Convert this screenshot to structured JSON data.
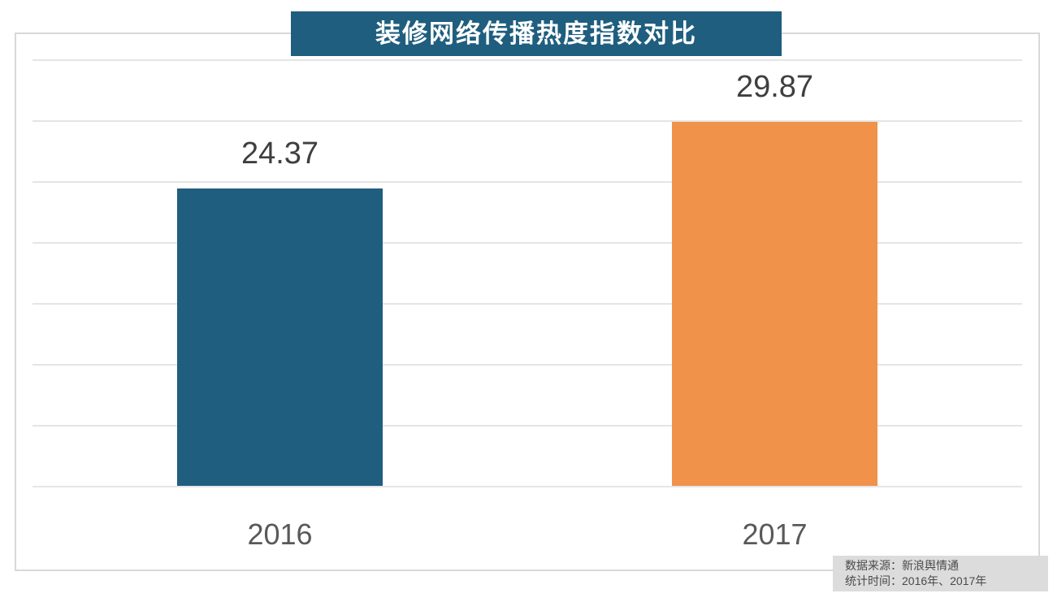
{
  "title": "装修网络传播热度指数对比",
  "colors": {
    "title_bg": "#1f5e7e",
    "bar_2016": "#1f5e7e",
    "bar_2017": "#f0924a",
    "grid": "#e5e5e5",
    "frame_border": "#d8d8d8",
    "value_label_text": "#3f3f3f",
    "axis_label_text": "#595959",
    "source_bg": "#dcdcdc",
    "source_text": "#4a4a4a"
  },
  "chart_data": {
    "type": "bar",
    "title": "装修网络传播热度指数对比",
    "categories": [
      "2016",
      "2017"
    ],
    "values": [
      24.37,
      29.87
    ],
    "bar_colors": [
      "#1f5e7e",
      "#f0924a"
    ],
    "xlabel": "",
    "ylabel": "",
    "ylim": [
      0,
      35
    ],
    "grid_step": 5,
    "grid": "on",
    "legend": "none",
    "data_labels": [
      "24.37",
      "29.87"
    ]
  },
  "source_note": {
    "line1": "数据来源：新浪舆情通",
    "line2": "统计时间：2016年、2017年"
  }
}
